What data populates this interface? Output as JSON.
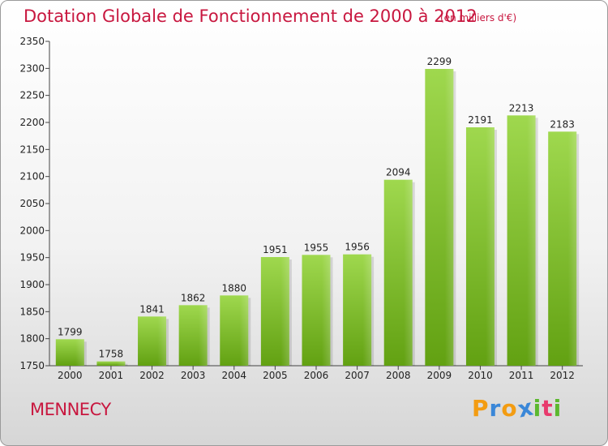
{
  "chart_data": {
    "type": "bar",
    "title": "Dotation Globale de Fonctionnement de 2000 à 2012",
    "subtitle": "(en milliers d'€)",
    "categories": [
      "2000",
      "2001",
      "2002",
      "2003",
      "2004",
      "2005",
      "2006",
      "2007",
      "2008",
      "2009",
      "2010",
      "2011",
      "2012"
    ],
    "values": [
      1799,
      1758,
      1841,
      1862,
      1880,
      1951,
      1955,
      1956,
      2094,
      2299,
      2191,
      2213,
      2183
    ],
    "ylim": [
      1750,
      2350
    ],
    "yticks": [
      1750,
      1800,
      1850,
      1900,
      1950,
      2000,
      2050,
      2100,
      2150,
      2200,
      2250,
      2300,
      2350
    ],
    "grid": false,
    "colors": {
      "bar_top": "#9fd84e",
      "bar_bottom": "#62a112",
      "title": "#c8173f"
    }
  },
  "footer": {
    "city": "MENNECY",
    "logo_letters": [
      "P",
      "r",
      "o",
      "x",
      "i",
      "t",
      "i"
    ],
    "logo_colors": [
      "#f39c12",
      "#3a87d8",
      "#f39c12",
      "#3a87d8",
      "#5cb82f",
      "#e83a6d",
      "#5cb82f"
    ]
  }
}
